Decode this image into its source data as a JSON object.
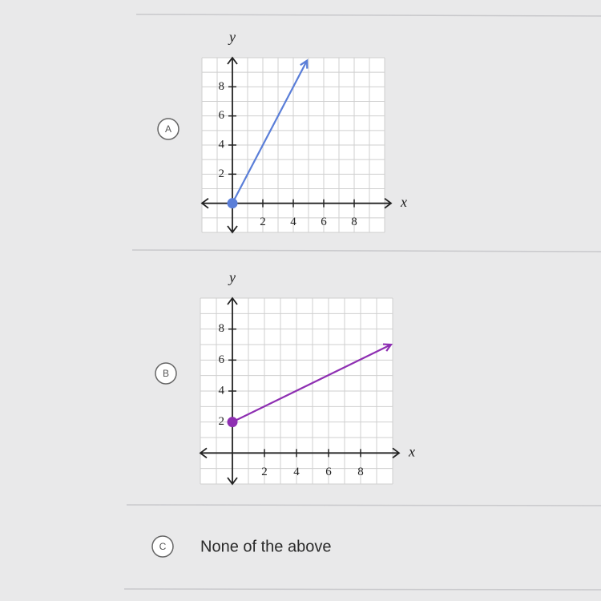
{
  "options": [
    {
      "letter": "A",
      "graph": {
        "type": "line",
        "x_label": "x",
        "y_label": "y",
        "xlim": [
          -2,
          10
        ],
        "ylim": [
          -2,
          10
        ],
        "xticks": [
          2,
          4,
          6,
          8
        ],
        "yticks": [
          2,
          4,
          6,
          8
        ],
        "color": "#5a7ed8",
        "x": [
          0,
          4.9
        ],
        "values": [
          0,
          9.8
        ]
      }
    },
    {
      "letter": "B",
      "graph": {
        "type": "line",
        "x_label": "x",
        "y_label": "y",
        "xlim": [
          -2,
          10
        ],
        "ylim": [
          -2,
          10
        ],
        "xticks": [
          2,
          4,
          6,
          8
        ],
        "yticks": [
          2,
          4,
          6,
          8
        ],
        "color": "#8e2fb2",
        "x": [
          0,
          9.9
        ],
        "values": [
          2,
          7
        ]
      }
    },
    {
      "letter": "C",
      "text": "None of the above"
    }
  ]
}
